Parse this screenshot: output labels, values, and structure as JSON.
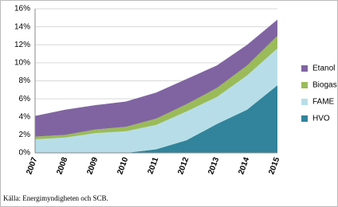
{
  "chart_data": {
    "type": "stacked-area",
    "categories": [
      "2007",
      "2008",
      "2009",
      "2010",
      "2011",
      "2012",
      "2013",
      "2014",
      "2015"
    ],
    "series": [
      {
        "name": "HVO",
        "color": "#31849b",
        "values": [
          0,
          0,
          0,
          0,
          0.4,
          1.4,
          3.2,
          4.8,
          7.5
        ]
      },
      {
        "name": "FAME",
        "color": "#b7dee8",
        "values": [
          1.5,
          1.7,
          2.2,
          2.4,
          2.7,
          3.2,
          3.0,
          3.8,
          4.1
        ]
      },
      {
        "name": "Biogas",
        "color": "#9bbb59",
        "values": [
          0.3,
          0.3,
          0.4,
          0.5,
          0.7,
          0.8,
          1.0,
          1.1,
          1.4
        ]
      },
      {
        "name": "Etanol",
        "color": "#8064a2",
        "values": [
          2.3,
          2.8,
          2.7,
          2.8,
          2.9,
          2.8,
          2.5,
          2.3,
          1.8
        ]
      }
    ],
    "ylim": [
      0,
      16
    ],
    "yticks": [
      {
        "value": 0,
        "label": "0%"
      },
      {
        "value": 2,
        "label": "2%"
      },
      {
        "value": 4,
        "label": "4%"
      },
      {
        "value": 6,
        "label": "6%"
      },
      {
        "value": 8,
        "label": "8%"
      },
      {
        "value": 10,
        "label": "10%"
      },
      {
        "value": 12,
        "label": "12%"
      },
      {
        "value": 14,
        "label": "14%"
      },
      {
        "value": 16,
        "label": "16%"
      }
    ],
    "grid": true,
    "legend": "right",
    "source": "Källa: Energimyndigheten och SCB."
  }
}
